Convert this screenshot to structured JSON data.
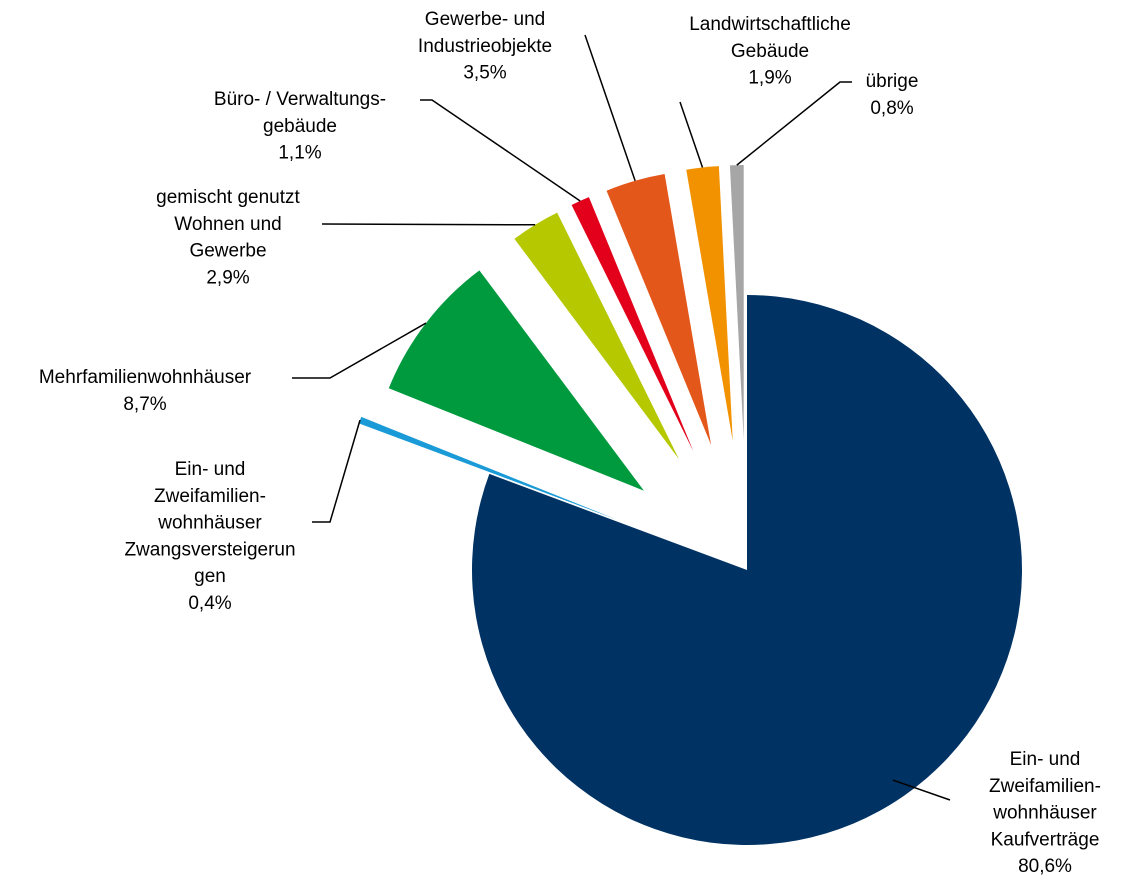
{
  "chart_data": {
    "type": "pie",
    "categories": [
      "Ein- und\nZweifamilien-\nwohnhäuser\nKaufverträge",
      "Ein- und\nZweifamilien-\nwohnhäuser\nZwangsversteigerun\ngen",
      "Mehrfamilienwohnhäuser",
      "gemischt genutzt\nWohnen und\nGewerbe",
      "Büro- / Verwaltungs-\ngebäude",
      "Gewerbe- und\nIndustrieobjekte",
      "Landwirtschaftliche\nGebäude",
      "übrige"
    ],
    "values": [
      80.6,
      0.4,
      8.7,
      2.9,
      1.1,
      3.5,
      1.9,
      0.8
    ],
    "value_labels": [
      "80,6%",
      "0,4%",
      "8,7%",
      "2,9%",
      "1,1%",
      "3,5%",
      "1,9%",
      "0,8%"
    ],
    "colors": [
      "#003263",
      "#1a9ad6",
      "#009a3e",
      "#b5c800",
      "#e3001b",
      "#e4571b",
      "#f39200",
      "#a6a6a6"
    ]
  }
}
